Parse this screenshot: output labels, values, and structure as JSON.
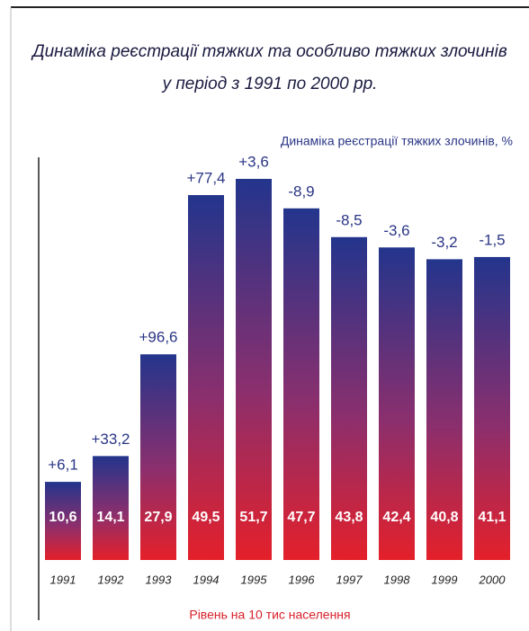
{
  "chart_data": {
    "type": "bar",
    "title": [
      "Динаміка реєстрації тяжких та особливо тяжких злочинів",
      "у період з 1991 по 2000 рр."
    ],
    "categories": [
      "1991",
      "1992",
      "1993",
      "1994",
      "1995",
      "1996",
      "1997",
      "1998",
      "1999",
      "2000"
    ],
    "values": [
      10.6,
      14.1,
      27.9,
      49.5,
      51.7,
      47.7,
      43.8,
      42.4,
      40.8,
      41.1
    ],
    "value_labels": [
      "10,6",
      "14,1",
      "27,9",
      "49,5",
      "51,7",
      "47,7",
      "43,8",
      "42,4",
      "40,8",
      "41,1"
    ],
    "x_label": "Рівень на 10 тис населення",
    "change_label": "Динаміка реєстрації тяжких злочинів, %",
    "change_values": [
      6.1,
      33.2,
      96.6,
      77.4,
      3.6,
      -8.9,
      -8.5,
      -3.6,
      -3.2,
      -1.5
    ],
    "change_value_labels": [
      "+6,1",
      "+33,2",
      "+96,6",
      "+77,4",
      "+3,6",
      "-8,9",
      "-8,5",
      "-3,6",
      "-3,2",
      "-1,5"
    ]
  }
}
